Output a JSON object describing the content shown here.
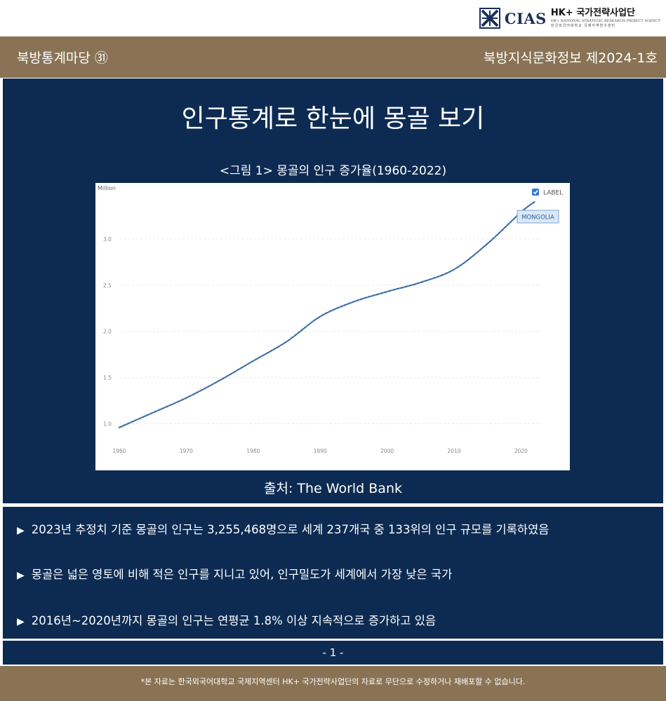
{
  "logo": {
    "org": "CIAS",
    "program": "HK+ 국가전략사업단",
    "sub_en": "HK+ NATIONAL STRATEGIC RESEARCH PROJECT AGENCY",
    "sub_kr": "한국외국어대학교 국제지역연구센터"
  },
  "header": {
    "series": "북방통계마당 ㉛",
    "issue": "북방지식문화정보 제2024-1호"
  },
  "title": "인구통계로 한눈에 몽골 보기",
  "figure_caption": "<그림 1> 몽골의 인구 증가율(1960-2022)",
  "source": "출처: The World Bank",
  "chart_data": {
    "type": "line",
    "ylabel": "Million",
    "legend_checkbox_label": "LABEL",
    "series": [
      {
        "name": "MONGOLIA",
        "color": "#3d6fa8",
        "x": [
          1960,
          1965,
          1970,
          1975,
          1980,
          1985,
          1990,
          1995,
          2000,
          2005,
          2010,
          2015,
          2020,
          2022
        ],
        "values": [
          0.96,
          1.12,
          1.28,
          1.47,
          1.68,
          1.89,
          2.16,
          2.32,
          2.43,
          2.53,
          2.67,
          2.95,
          3.29,
          3.4
        ]
      }
    ],
    "xticks": [
      "1960",
      "1970",
      "1980",
      "1990",
      "2000",
      "2010",
      "2020"
    ],
    "yticks": [
      "1.0",
      "1.5",
      "2.0",
      "2.5",
      "3.0"
    ],
    "xlim": [
      1960,
      2023
    ],
    "ylim": [
      0.86,
      3.5
    ],
    "grid": true
  },
  "bullets": [
    "2023년 추정치 기준 몽골의 인구는 3,255,468명으로 세계 237개국 중 133위의 인구 규모를 기록하였음",
    "몽골은 넓은 영토에 비해 적은 인구를 지니고 있어, 인구밀도가 세계에서 가장 낮은 국가",
    "2016년~2020년까지 몽골의 인구는 연평균 1.8% 이상 지속적으로 증가하고 있음"
  ],
  "page_number": "- 1 -",
  "footer_note": "*본 자료는 한국외국어대학교 국제지역센터 HK+ 국가전략사업단의 자료로 무단으로 수정하거나 재배포할 수 없습니다."
}
